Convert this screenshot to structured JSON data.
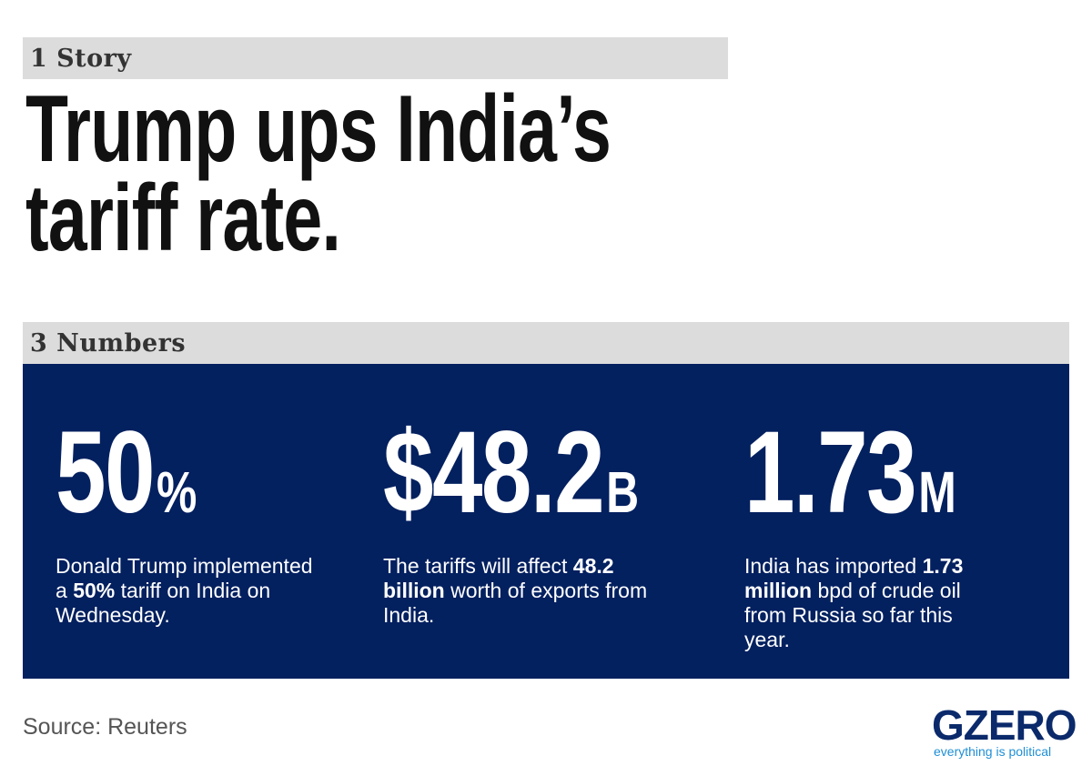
{
  "story": {
    "label": "1 Story",
    "headline_line1": "Trump ups India’s",
    "headline_line2": "tariff rate."
  },
  "numbers": {
    "label": "3 Numbers",
    "items": [
      {
        "figure": "50",
        "unit": "%",
        "text_parts": [
          "Donald Trump implemented a ",
          "50%",
          " tariff on India on Wednesday."
        ]
      },
      {
        "figure": "$48.2",
        "unit": "B",
        "text_parts": [
          "The tariffs will affect ",
          "48.2 billion",
          " worth of exports from India."
        ]
      },
      {
        "figure": "1.73",
        "unit": "M",
        "text_parts": [
          "India has imported ",
          "1.73 million",
          " bpd of crude oil from Russia so far this year."
        ]
      }
    ]
  },
  "source": "Source: Reuters",
  "logo": {
    "word": "GZERO",
    "tagline": "everything is political"
  },
  "colors": {
    "panel": "#03205f",
    "label_bar": "#dcdcdc",
    "logo_word": "#0a2a6b",
    "logo_tagline": "#1e8fd6"
  }
}
